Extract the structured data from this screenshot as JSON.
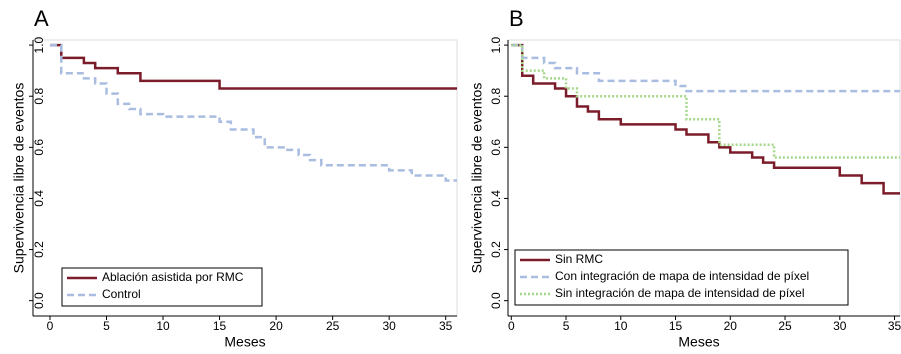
{
  "chart_data": [
    {
      "type": "step",
      "title": "A",
      "x_label": "Meses",
      "y_label": "Supervivencia libre de eventos",
      "xlim": [
        -1.5,
        36
      ],
      "xticks": [
        0,
        5,
        10,
        15,
        20,
        25,
        30,
        35
      ],
      "ylim": [
        -0.06,
        1.02
      ],
      "yticks": [
        {
          "value": 0,
          "label": "0.0"
        },
        0.2,
        0.4,
        0.6,
        0.8,
        {
          "value": 1,
          "label": "1.0"
        }
      ],
      "legend": "lower-left",
      "series": [
        {
          "name": "Ablación asistida por RMC",
          "color": "#7b1c2a",
          "dash": "solid",
          "x": [
            0,
            1,
            3,
            4,
            6,
            8,
            15,
            36
          ],
          "values": [
            1,
            0.95,
            0.93,
            0.91,
            0.89,
            0.86,
            0.83,
            0.83
          ]
        },
        {
          "name": "Control",
          "color": "#a9bde0",
          "dash": "dashed",
          "x": [
            0,
            1,
            3,
            4,
            5,
            6,
            7,
            8,
            10,
            15,
            16,
            18,
            19,
            21,
            22,
            23,
            24,
            30,
            32,
            35,
            36
          ],
          "values": [
            1,
            0.89,
            0.87,
            0.85,
            0.81,
            0.77,
            0.75,
            0.73,
            0.72,
            0.7,
            0.67,
            0.64,
            0.6,
            0.59,
            0.57,
            0.55,
            0.53,
            0.51,
            0.49,
            0.47,
            0.47
          ]
        }
      ]
    },
    {
      "type": "step",
      "title": "B",
      "x_label": "Meses",
      "y_label": "Supervivencia libre de eventos",
      "xlim": [
        -0.3,
        35.5
      ],
      "xticks": [
        0,
        5,
        10,
        15,
        20,
        25,
        30,
        35
      ],
      "ylim": [
        -0.06,
        1.02
      ],
      "yticks": [
        {
          "value": 0,
          "label": "0.0"
        },
        0.2,
        0.4,
        0.6,
        0.8,
        {
          "value": 1,
          "label": "1.0"
        }
      ],
      "legend": "lower-left",
      "series": [
        {
          "name": "Sin RMC",
          "color": "#7b1c2a",
          "dash": "solid",
          "x": [
            0,
            1,
            2,
            4,
            5,
            6,
            7,
            8,
            10,
            15,
            16,
            18,
            19,
            20,
            22,
            23,
            24,
            30,
            32,
            34,
            35.5
          ],
          "values": [
            1,
            0.88,
            0.85,
            0.83,
            0.8,
            0.76,
            0.74,
            0.71,
            0.69,
            0.67,
            0.65,
            0.62,
            0.6,
            0.58,
            0.56,
            0.54,
            0.52,
            0.49,
            0.46,
            0.42,
            0.42
          ]
        },
        {
          "name": "Con integración de mapa de intensidad de píxel",
          "color": "#a9bde0",
          "dash": "dashed",
          "x": [
            0,
            1,
            3,
            4,
            6,
            8,
            15,
            16,
            35.5
          ],
          "values": [
            1,
            0.95,
            0.93,
            0.91,
            0.89,
            0.86,
            0.84,
            0.82,
            0.82
          ]
        },
        {
          "name": "Sin integración de mapa de intensidad de píxel",
          "color": "#a6d68a",
          "dash": "dotted",
          "x": [
            0,
            1,
            3,
            5,
            6,
            16,
            19,
            24,
            35.5
          ],
          "values": [
            1,
            0.9,
            0.87,
            0.83,
            0.8,
            0.71,
            0.61,
            0.56,
            0.56
          ]
        }
      ]
    }
  ]
}
